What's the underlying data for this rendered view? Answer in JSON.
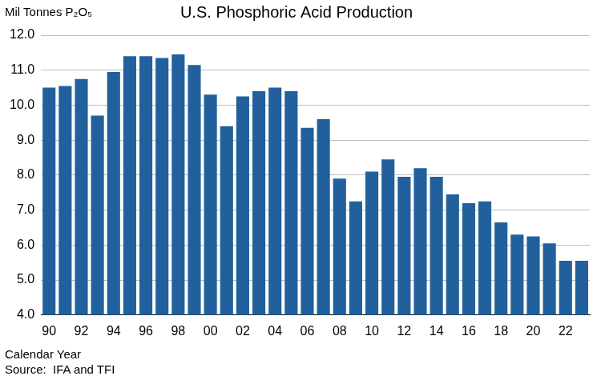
{
  "chart_data": {
    "type": "bar",
    "title": "U.S. Phosphoric Acid Production",
    "y_label": "Mil Tonnes P₂O₅",
    "x_label": "Calendar Year",
    "source": "Source:  IFA and TFI",
    "categories": [
      "90",
      null,
      "92",
      null,
      "94",
      null,
      "96",
      null,
      "98",
      null,
      "00",
      null,
      "02",
      null,
      "04",
      null,
      "06",
      null,
      "08",
      null,
      "10",
      null,
      "12",
      null,
      "14",
      null,
      "16",
      null,
      "18",
      null,
      "20",
      null,
      "22",
      null
    ],
    "values": [
      10.5,
      10.55,
      10.75,
      9.7,
      10.95,
      11.4,
      11.4,
      11.35,
      11.45,
      11.15,
      10.3,
      9.4,
      10.25,
      10.4,
      10.5,
      10.4,
      9.35,
      9.6,
      7.9,
      7.25,
      8.1,
      8.45,
      7.95,
      8.2,
      7.95,
      7.45,
      7.2,
      7.25,
      6.65,
      6.3,
      6.25,
      6.05,
      5.55,
      5.55
    ],
    "color": "#21609c",
    "ylim": [
      4,
      12
    ],
    "yticks": [
      {
        "value": 4,
        "label": "4.0"
      },
      {
        "value": 5,
        "label": "5.0"
      },
      {
        "value": 6,
        "label": "6.0"
      },
      {
        "value": 7,
        "label": "7.0"
      },
      {
        "value": 8,
        "label": "8.0"
      },
      {
        "value": 9,
        "label": "9.0"
      },
      {
        "value": 10,
        "label": "10.0"
      },
      {
        "value": 11,
        "label": "11.0"
      },
      {
        "value": 12,
        "label": "12.0"
      }
    ],
    "grid": true
  }
}
